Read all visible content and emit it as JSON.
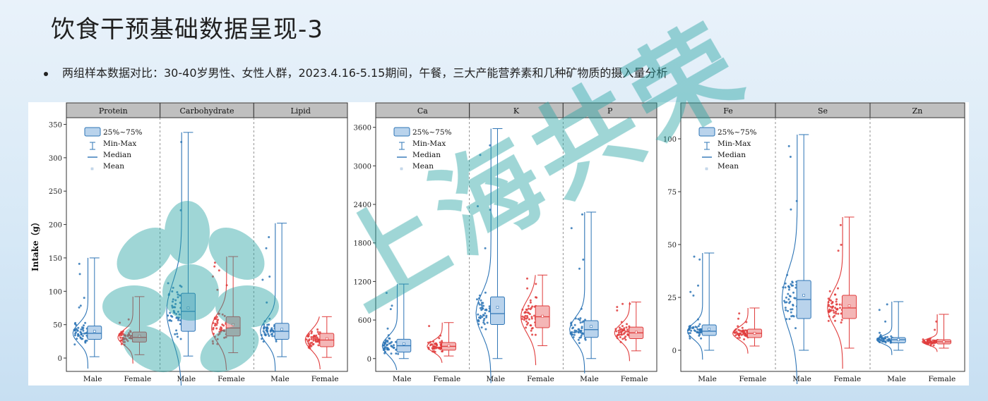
{
  "slide": {
    "title": "饮食干预基础数据呈现-3",
    "bullet": "两组样本数据对比：30-40岁男性、女性人群，2023.4.16-5.15期间，午餐，三大产能营养素和几种矿物质的摄入量分析",
    "watermark_text": "上海共荣"
  },
  "colors": {
    "male": "#2e75b6",
    "female": "#e03c3c",
    "male_fill": "#b9d3ec",
    "female_fill": "#f4b6b6",
    "header_bg": "#bfbfbf"
  },
  "chart_data": [
    {
      "type": "box",
      "ylabel": "Intake（g）",
      "ylim": [
        -20,
        360
      ],
      "yticks": [
        0,
        50,
        100,
        150,
        200,
        250,
        300,
        350
      ],
      "categories": [
        "Male",
        "Female"
      ],
      "legend": [
        "25%~75%",
        "Min-Max",
        "Median",
        "Mean"
      ],
      "facets": [
        {
          "name": "Protein",
          "male": {
            "min": 2,
            "q1": 28,
            "median": 37,
            "q3": 48,
            "max": 150,
            "mean": 40
          },
          "female": {
            "min": 5,
            "q1": 24,
            "median": 31,
            "q3": 39,
            "max": 92,
            "mean": 33
          }
        },
        {
          "name": "Carbohydrate",
          "male": {
            "min": 3,
            "q1": 40,
            "median": 70,
            "q3": 97,
            "max": 338,
            "mean": 75
          },
          "female": {
            "min": 8,
            "q1": 33,
            "median": 45,
            "q3": 62,
            "max": 152,
            "mean": 50
          }
        },
        {
          "name": "Lipid",
          "male": {
            "min": 2,
            "q1": 28,
            "median": 40,
            "q3": 52,
            "max": 202,
            "mean": 43
          },
          "female": {
            "min": 1,
            "q1": 17,
            "median": 27,
            "q3": 37,
            "max": 62,
            "mean": 29
          }
        }
      ]
    },
    {
      "type": "box",
      "ylabel": "",
      "ylim": [
        -200,
        3750
      ],
      "yticks": [
        0,
        600,
        1200,
        1800,
        2400,
        3000,
        3600
      ],
      "categories": [
        "Male",
        "Female"
      ],
      "legend": [
        "25%~75%",
        "Min-Max",
        "Median",
        "Mean"
      ],
      "facets": [
        {
          "name": "Ca",
          "male": {
            "min": 0,
            "q1": 100,
            "median": 200,
            "q3": 300,
            "max": 1160,
            "mean": 230
          },
          "female": {
            "min": 40,
            "q1": 130,
            "median": 190,
            "q3": 250,
            "max": 560,
            "mean": 200
          }
        },
        {
          "name": "K",
          "male": {
            "min": 0,
            "q1": 530,
            "median": 700,
            "q3": 960,
            "max": 3580,
            "mean": 800
          },
          "female": {
            "min": 200,
            "q1": 480,
            "median": 650,
            "q3": 820,
            "max": 1300,
            "mean": 660
          }
        },
        {
          "name": "P",
          "male": {
            "min": 0,
            "q1": 330,
            "median": 450,
            "q3": 590,
            "max": 2280,
            "mean": 500
          },
          "female": {
            "min": 120,
            "q1": 310,
            "median": 400,
            "q3": 490,
            "max": 880,
            "mean": 410
          }
        }
      ]
    },
    {
      "type": "box",
      "ylabel": "",
      "ylim": [
        -10,
        110
      ],
      "yticks": [
        0,
        25,
        50,
        75,
        100
      ],
      "categories": [
        "Male",
        "Female"
      ],
      "legend": [
        "25%~75%",
        "Min-Max",
        "Median",
        "Mean"
      ],
      "facets": [
        {
          "name": "Fe",
          "male": {
            "min": 0,
            "q1": 7,
            "median": 9,
            "q3": 12,
            "max": 46,
            "mean": 10
          },
          "female": {
            "min": 2,
            "q1": 6,
            "median": 8,
            "q3": 10,
            "max": 20,
            "mean": 8
          }
        },
        {
          "name": "Se",
          "male": {
            "min": 0,
            "q1": 15,
            "median": 24,
            "q3": 33,
            "max": 102,
            "mean": 26
          },
          "female": {
            "min": 1,
            "q1": 15,
            "median": 20,
            "q3": 26,
            "max": 63,
            "mean": 21
          }
        },
        {
          "name": "Zn",
          "male": {
            "min": 0,
            "q1": 3.5,
            "median": 5,
            "q3": 6,
            "max": 23,
            "mean": 5
          },
          "female": {
            "min": 1,
            "q1": 3,
            "median": 4,
            "q3": 5,
            "max": 17,
            "mean": 4
          }
        }
      ]
    }
  ]
}
